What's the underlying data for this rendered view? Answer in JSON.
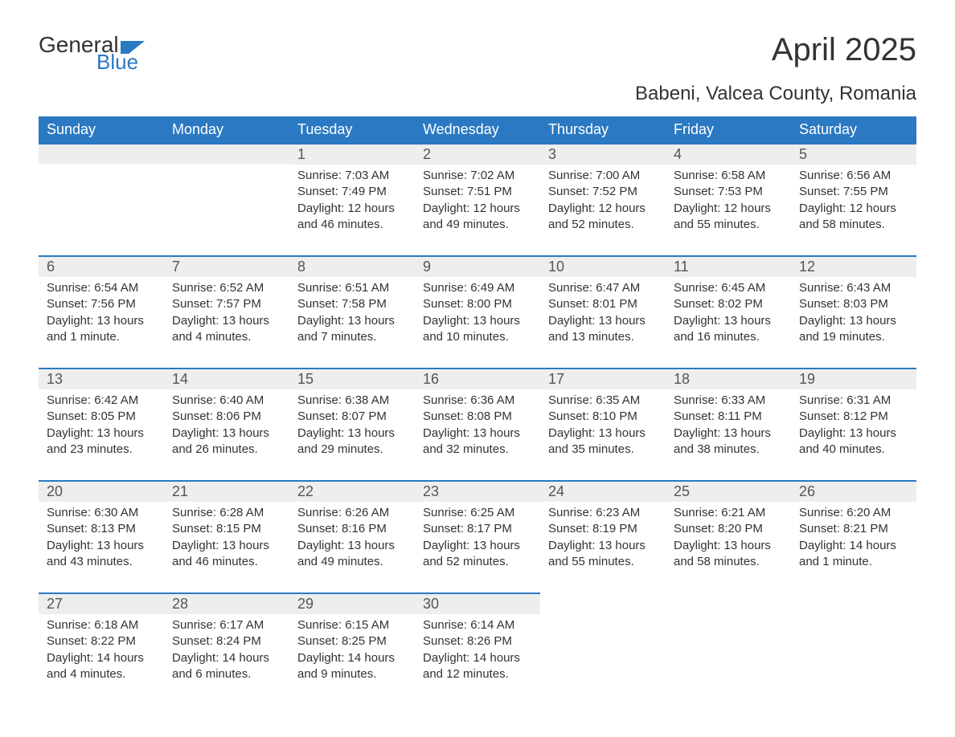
{
  "logo": {
    "main": "General",
    "sub": "Blue"
  },
  "title": "April 2025",
  "subtitle": "Babeni, Valcea County, Romania",
  "day_headers": [
    "Sunday",
    "Monday",
    "Tuesday",
    "Wednesday",
    "Thursday",
    "Friday",
    "Saturday"
  ],
  "colors": {
    "header_bg": "#2b79c2",
    "header_text": "#ffffff",
    "daynum_bg": "#eeeeee",
    "daynum_border": "#2b79c2",
    "body_text": "#333333",
    "logo_sub": "#2b79c2"
  },
  "weeks": [
    [
      null,
      null,
      {
        "n": "1",
        "sunrise": "Sunrise: 7:03 AM",
        "sunset": "Sunset: 7:49 PM",
        "daylight": "Daylight: 12 hours and 46 minutes."
      },
      {
        "n": "2",
        "sunrise": "Sunrise: 7:02 AM",
        "sunset": "Sunset: 7:51 PM",
        "daylight": "Daylight: 12 hours and 49 minutes."
      },
      {
        "n": "3",
        "sunrise": "Sunrise: 7:00 AM",
        "sunset": "Sunset: 7:52 PM",
        "daylight": "Daylight: 12 hours and 52 minutes."
      },
      {
        "n": "4",
        "sunrise": "Sunrise: 6:58 AM",
        "sunset": "Sunset: 7:53 PM",
        "daylight": "Daylight: 12 hours and 55 minutes."
      },
      {
        "n": "5",
        "sunrise": "Sunrise: 6:56 AM",
        "sunset": "Sunset: 7:55 PM",
        "daylight": "Daylight: 12 hours and 58 minutes."
      }
    ],
    [
      {
        "n": "6",
        "sunrise": "Sunrise: 6:54 AM",
        "sunset": "Sunset: 7:56 PM",
        "daylight": "Daylight: 13 hours and 1 minute."
      },
      {
        "n": "7",
        "sunrise": "Sunrise: 6:52 AM",
        "sunset": "Sunset: 7:57 PM",
        "daylight": "Daylight: 13 hours and 4 minutes."
      },
      {
        "n": "8",
        "sunrise": "Sunrise: 6:51 AM",
        "sunset": "Sunset: 7:58 PM",
        "daylight": "Daylight: 13 hours and 7 minutes."
      },
      {
        "n": "9",
        "sunrise": "Sunrise: 6:49 AM",
        "sunset": "Sunset: 8:00 PM",
        "daylight": "Daylight: 13 hours and 10 minutes."
      },
      {
        "n": "10",
        "sunrise": "Sunrise: 6:47 AM",
        "sunset": "Sunset: 8:01 PM",
        "daylight": "Daylight: 13 hours and 13 minutes."
      },
      {
        "n": "11",
        "sunrise": "Sunrise: 6:45 AM",
        "sunset": "Sunset: 8:02 PM",
        "daylight": "Daylight: 13 hours and 16 minutes."
      },
      {
        "n": "12",
        "sunrise": "Sunrise: 6:43 AM",
        "sunset": "Sunset: 8:03 PM",
        "daylight": "Daylight: 13 hours and 19 minutes."
      }
    ],
    [
      {
        "n": "13",
        "sunrise": "Sunrise: 6:42 AM",
        "sunset": "Sunset: 8:05 PM",
        "daylight": "Daylight: 13 hours and 23 minutes."
      },
      {
        "n": "14",
        "sunrise": "Sunrise: 6:40 AM",
        "sunset": "Sunset: 8:06 PM",
        "daylight": "Daylight: 13 hours and 26 minutes."
      },
      {
        "n": "15",
        "sunrise": "Sunrise: 6:38 AM",
        "sunset": "Sunset: 8:07 PM",
        "daylight": "Daylight: 13 hours and 29 minutes."
      },
      {
        "n": "16",
        "sunrise": "Sunrise: 6:36 AM",
        "sunset": "Sunset: 8:08 PM",
        "daylight": "Daylight: 13 hours and 32 minutes."
      },
      {
        "n": "17",
        "sunrise": "Sunrise: 6:35 AM",
        "sunset": "Sunset: 8:10 PM",
        "daylight": "Daylight: 13 hours and 35 minutes."
      },
      {
        "n": "18",
        "sunrise": "Sunrise: 6:33 AM",
        "sunset": "Sunset: 8:11 PM",
        "daylight": "Daylight: 13 hours and 38 minutes."
      },
      {
        "n": "19",
        "sunrise": "Sunrise: 6:31 AM",
        "sunset": "Sunset: 8:12 PM",
        "daylight": "Daylight: 13 hours and 40 minutes."
      }
    ],
    [
      {
        "n": "20",
        "sunrise": "Sunrise: 6:30 AM",
        "sunset": "Sunset: 8:13 PM",
        "daylight": "Daylight: 13 hours and 43 minutes."
      },
      {
        "n": "21",
        "sunrise": "Sunrise: 6:28 AM",
        "sunset": "Sunset: 8:15 PM",
        "daylight": "Daylight: 13 hours and 46 minutes."
      },
      {
        "n": "22",
        "sunrise": "Sunrise: 6:26 AM",
        "sunset": "Sunset: 8:16 PM",
        "daylight": "Daylight: 13 hours and 49 minutes."
      },
      {
        "n": "23",
        "sunrise": "Sunrise: 6:25 AM",
        "sunset": "Sunset: 8:17 PM",
        "daylight": "Daylight: 13 hours and 52 minutes."
      },
      {
        "n": "24",
        "sunrise": "Sunrise: 6:23 AM",
        "sunset": "Sunset: 8:19 PM",
        "daylight": "Daylight: 13 hours and 55 minutes."
      },
      {
        "n": "25",
        "sunrise": "Sunrise: 6:21 AM",
        "sunset": "Sunset: 8:20 PM",
        "daylight": "Daylight: 13 hours and 58 minutes."
      },
      {
        "n": "26",
        "sunrise": "Sunrise: 6:20 AM",
        "sunset": "Sunset: 8:21 PM",
        "daylight": "Daylight: 14 hours and 1 minute."
      }
    ],
    [
      {
        "n": "27",
        "sunrise": "Sunrise: 6:18 AM",
        "sunset": "Sunset: 8:22 PM",
        "daylight": "Daylight: 14 hours and 4 minutes."
      },
      {
        "n": "28",
        "sunrise": "Sunrise: 6:17 AM",
        "sunset": "Sunset: 8:24 PM",
        "daylight": "Daylight: 14 hours and 6 minutes."
      },
      {
        "n": "29",
        "sunrise": "Sunrise: 6:15 AM",
        "sunset": "Sunset: 8:25 PM",
        "daylight": "Daylight: 14 hours and 9 minutes."
      },
      {
        "n": "30",
        "sunrise": "Sunrise: 6:14 AM",
        "sunset": "Sunset: 8:26 PM",
        "daylight": "Daylight: 14 hours and 12 minutes."
      },
      null,
      null,
      null
    ]
  ]
}
